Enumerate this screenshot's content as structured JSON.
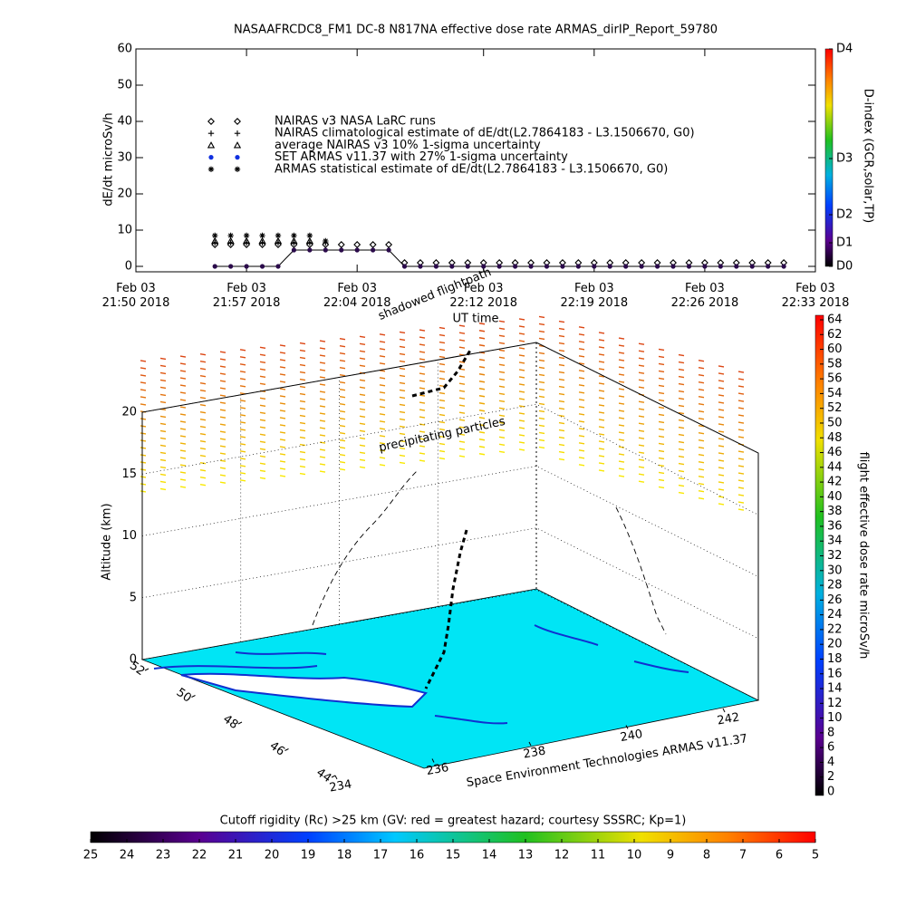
{
  "chart_data": [
    {
      "type": "scatter",
      "title": "NASAAFRCDC8_FM1 DC-8   N817NA effective dose rate ARMAS_dirIP_Report_59780",
      "ylabel": "dE/dt microSv/h",
      "xlabel": "UT time",
      "xlim": [
        "2018-02-03T21:50",
        "2018-02-03T22:33"
      ],
      "xticks": [
        {
          "value": "2018-02-03T21:50",
          "label": "Feb 03\n21:50 2018"
        },
        {
          "value": "2018-02-03T21:57",
          "label": "Feb 03\n21:57 2018"
        },
        {
          "value": "2018-02-03T22:04",
          "label": "Feb 03\n22:04 2018"
        },
        {
          "value": "2018-02-03T22:12",
          "label": "Feb 03\n22:12 2018"
        },
        {
          "value": "2018-02-03T22:19",
          "label": "Feb 03\n22:19 2018"
        },
        {
          "value": "2018-02-03T22:26",
          "label": "Feb 03\n22:26 2018"
        },
        {
          "value": "2018-02-03T22:33",
          "label": "Feb 03\n22:33 2018"
        }
      ],
      "ylim": [
        -1.5,
        60
      ],
      "yticks": [
        0,
        10,
        20,
        30,
        40,
        50,
        60
      ],
      "x": [
        "2018-02-03T21:55",
        "2018-02-03T21:56",
        "2018-02-03T21:57",
        "2018-02-03T21:58",
        "2018-02-03T21:59",
        "2018-02-03T22:00",
        "2018-02-03T22:01",
        "2018-02-03T22:02",
        "2018-02-03T22:03",
        "2018-02-03T22:04",
        "2018-02-03T22:05",
        "2018-02-03T22:06",
        "2018-02-03T22:07",
        "2018-02-03T22:08",
        "2018-02-03T22:09",
        "2018-02-03T22:10",
        "2018-02-03T22:11",
        "2018-02-03T22:12",
        "2018-02-03T22:13",
        "2018-02-03T22:14",
        "2018-02-03T22:15",
        "2018-02-03T22:16",
        "2018-02-03T22:17",
        "2018-02-03T22:18",
        "2018-02-03T22:19",
        "2018-02-03T22:20",
        "2018-02-03T22:21",
        "2018-02-03T22:22",
        "2018-02-03T22:23",
        "2018-02-03T22:24",
        "2018-02-03T22:25",
        "2018-02-03T22:26",
        "2018-02-03T22:27",
        "2018-02-03T22:28",
        "2018-02-03T22:29",
        "2018-02-03T22:30",
        "2018-02-03T22:31"
      ],
      "series": [
        {
          "name": "NAIRAS v3 NASA LaRC runs",
          "marker": "diamond",
          "color": "#000000",
          "values": [
            6,
            6,
            6,
            6,
            6,
            6,
            6,
            6,
            6,
            6,
            6,
            6,
            1,
            1,
            1,
            1,
            1,
            1,
            1,
            1,
            1,
            1,
            1,
            1,
            1,
            1,
            1,
            1,
            1,
            1,
            1,
            1,
            1,
            1,
            1,
            1,
            1
          ]
        },
        {
          "name": "NAIRAS climatological estimate of dE/dt(L2.7864183 - L3.1506670, G0)",
          "marker": "plus",
          "color": "#000000",
          "values": [
            6.5,
            6.5,
            6.5,
            6.5,
            6.5,
            6.5,
            6.5,
            6.5,
            null,
            null,
            null,
            null,
            null,
            null,
            null,
            null,
            null,
            null,
            null,
            null,
            null,
            null,
            null,
            null,
            null,
            null,
            null,
            null,
            null,
            null,
            null,
            null,
            null,
            null,
            null,
            null,
            null
          ]
        },
        {
          "name": "average NAIRAS v3 10% 1-sigma uncertainty",
          "marker": "triangle",
          "color": "#000000",
          "values": [
            7,
            7,
            7,
            7,
            7,
            7,
            7,
            null,
            null,
            null,
            null,
            null,
            null,
            null,
            null,
            null,
            null,
            null,
            null,
            null,
            null,
            null,
            null,
            null,
            null,
            null,
            null,
            null,
            null,
            null,
            null,
            null,
            null,
            null,
            null,
            null,
            null
          ]
        },
        {
          "name": "SET ARMAS v11.37 with 27% 1-sigma uncertainty",
          "marker": "circle",
          "color": "#1030e0",
          "point_color": "#2a0a4a",
          "line": true,
          "values": [
            0,
            0,
            0,
            0,
            0,
            4.5,
            4.5,
            4.5,
            4.5,
            4.5,
            4.5,
            4.5,
            0,
            0,
            0,
            0,
            0,
            0,
            0,
            0,
            0,
            0,
            0,
            0,
            0,
            0,
            0,
            0,
            0,
            0,
            0,
            0,
            0,
            0,
            0,
            0,
            0
          ]
        },
        {
          "name": "ARMAS statistical estimate of dE/dt(L2.7864183 - L3.1506670, G0)",
          "marker": "asterisk",
          "color": "#000000",
          "values": [
            8.5,
            8.5,
            8.5,
            8.5,
            8.5,
            8.5,
            8.5,
            7,
            null,
            null,
            null,
            null,
            null,
            null,
            null,
            null,
            null,
            null,
            null,
            null,
            null,
            null,
            null,
            null,
            null,
            null,
            null,
            null,
            null,
            null,
            null,
            null,
            null,
            null,
            null,
            null,
            null
          ]
        }
      ],
      "colorbar": {
        "label": "D-index (GCR,solar,TP)",
        "ticks": [
          {
            "value": 0,
            "label": "D0"
          },
          {
            "value": 6.5,
            "label": "D1"
          },
          {
            "value": 14.25,
            "label": "D2"
          },
          {
            "value": 29.75,
            "label": "D3"
          },
          {
            "value": 60,
            "label": "D4"
          }
        ]
      }
    },
    {
      "type": "surface3d",
      "ylabel": "Altitude (km)",
      "zlim": [
        0,
        20
      ],
      "zticks": [
        0,
        5,
        10,
        15,
        20
      ],
      "latlim": [
        52,
        44
      ],
      "latticks": [
        52,
        50,
        48,
        46,
        44
      ],
      "lonlim": [
        234,
        242
      ],
      "lonticks": [
        234,
        236,
        238,
        240,
        242
      ],
      "annotations": [
        "precipitating particles",
        "shadowed flightpath",
        "Space Environment Technologies ARMAS v11.37"
      ]
    },
    {
      "type": "colorbar",
      "label": "flight effective dose rate microSv/h",
      "ylim": [
        0,
        64
      ],
      "yticks": [
        0,
        2,
        4,
        6,
        8,
        10,
        12,
        14,
        16,
        18,
        20,
        22,
        24,
        26,
        28,
        30,
        32,
        34,
        36,
        38,
        40,
        42,
        44,
        46,
        48,
        50,
        52,
        54,
        56,
        58,
        60,
        62,
        64
      ]
    },
    {
      "type": "colorbar",
      "title": "Cutoff rigidity (Rc) >25 km (GV: red = greatest hazard; courtesy SSSRC; Kp=1)",
      "xlim": [
        25,
        5
      ],
      "xticks": [
        25,
        24,
        23,
        22,
        21,
        20,
        19,
        18,
        17,
        16,
        15,
        14,
        13,
        12,
        11,
        10,
        9,
        8,
        7,
        6,
        5
      ]
    }
  ]
}
